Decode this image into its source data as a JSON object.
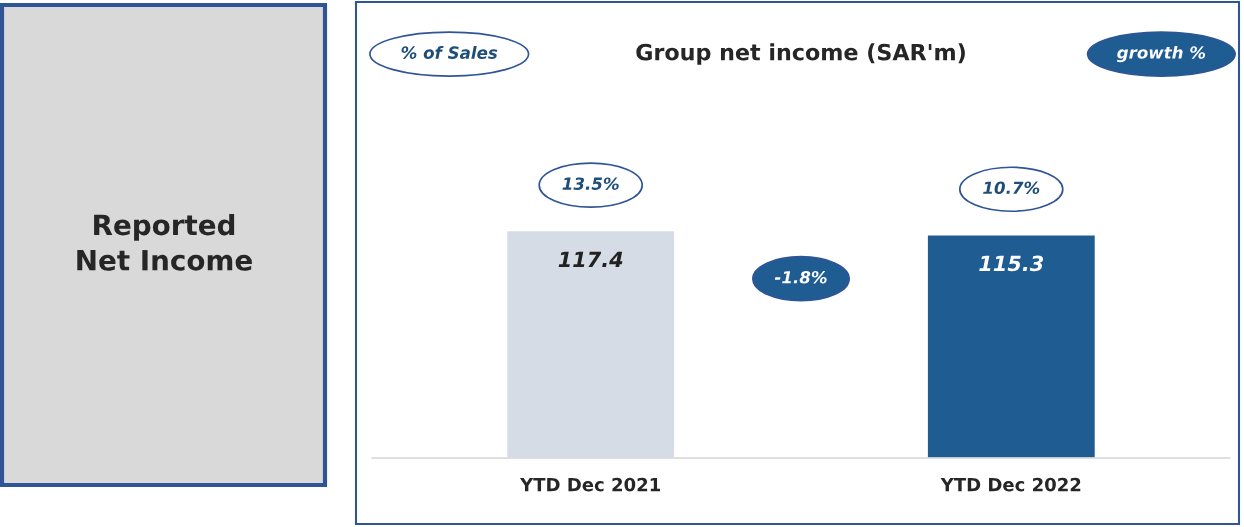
{
  "chart_data": {
    "type": "bar",
    "title": "Group net income (SAR'm)",
    "categories": [
      "YTD Dec 2021",
      "YTD Dec 2022"
    ],
    "values": [
      117.4,
      115.3
    ],
    "colors": [
      "#d6dce5",
      "#1f5c92"
    ],
    "data_labels": true,
    "grid": false,
    "legend": false,
    "annotations": [
      "% of Sales",
      "growth %",
      "-1.8%",
      "Reported\nNet Income",
      "13.5%",
      "10.7%"
    ]
  }
}
